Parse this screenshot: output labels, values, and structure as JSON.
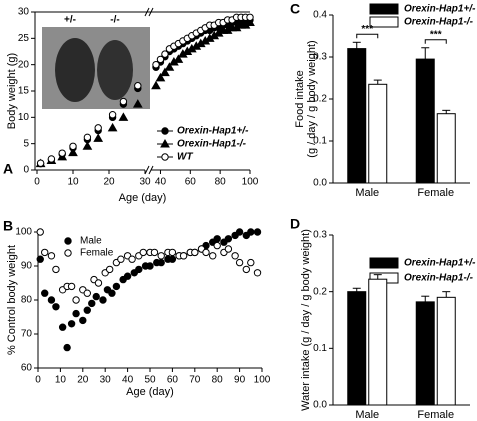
{
  "chart_data": [
    {
      "type": "line",
      "label": "A",
      "xlabel": "Age (day)",
      "ylabel": "Body weight (g)",
      "annotations": [
        "+/-",
        "-/-"
      ],
      "xlim": [
        0,
        100
      ],
      "x_segments": [
        [
          0,
          30
        ],
        [
          35,
          100
        ]
      ],
      "xticks": [
        0,
        10,
        20,
        30,
        40,
        60,
        80,
        100
      ],
      "ylim": [
        0,
        30
      ],
      "yticks": [
        0,
        5,
        10,
        15,
        20,
        25,
        30
      ],
      "x": [
        1,
        4,
        7,
        10,
        14,
        17,
        21,
        24,
        28,
        37,
        40,
        43,
        46,
        49,
        52,
        55,
        58,
        61,
        64,
        67,
        70,
        73,
        76,
        79,
        82,
        85,
        88,
        91,
        94,
        97,
        100
      ],
      "series": [
        {
          "name": "Orexin-Hap1+/-",
          "color": "#000000",
          "marker": "circle",
          "filled": true,
          "values": [
            1.2,
            2,
            3,
            4.2,
            5.8,
            7.5,
            10,
            12.5,
            15.5,
            19.5,
            20.5,
            21.5,
            22.5,
            23,
            23.5,
            24,
            24.5,
            25,
            25.5,
            26,
            26.5,
            26.5,
            27,
            27,
            27.5,
            27.5,
            28,
            28,
            28,
            28.5,
            28.5
          ]
        },
        {
          "name": "Orexin-Hap1-/-",
          "color": "#000000",
          "marker": "triangle",
          "filled": true,
          "values": [
            1.2,
            1.8,
            2.5,
            3.3,
            4.5,
            6,
            8,
            10,
            12.5,
            16,
            17.5,
            18.5,
            19.5,
            20.5,
            21,
            22,
            22.5,
            23,
            23.5,
            24,
            24.5,
            25,
            25.5,
            26,
            26.5,
            26.5,
            27,
            27,
            27.5,
            27.5,
            28
          ]
        },
        {
          "name": "WT",
          "color": "#000000",
          "marker": "circle",
          "filled": false,
          "values": [
            1.3,
            2.1,
            3.2,
            4.5,
            6.2,
            8,
            10.5,
            13,
            16,
            20,
            21,
            22,
            23,
            23.5,
            24,
            24.5,
            25,
            25.5,
            26,
            26.5,
            27,
            27.5,
            27.5,
            28,
            28,
            28.5,
            28.5,
            29,
            29,
            29,
            29
          ]
        }
      ]
    },
    {
      "type": "scatter",
      "label": "B",
      "xlabel": "Age (day)",
      "ylabel": "% Control body weight",
      "xlim": [
        0,
        100
      ],
      "xticks": [
        0,
        10,
        20,
        30,
        40,
        50,
        60,
        70,
        80,
        90,
        100
      ],
      "ylim": [
        60,
        100
      ],
      "yticks": [
        60,
        70,
        80,
        90,
        100
      ],
      "series": [
        {
          "name": "Male",
          "color": "#000000",
          "marker": "circle",
          "filled": true,
          "x": [
            1,
            3,
            6,
            8,
            11,
            13,
            15,
            17,
            20,
            22,
            24,
            26,
            29,
            31,
            33,
            35,
            38,
            40,
            43,
            45,
            48,
            50,
            53,
            55,
            58,
            60,
            63,
            65,
            68,
            70,
            73,
            75,
            78,
            80,
            83,
            85,
            88,
            90,
            93,
            95,
            98
          ],
          "values": [
            92,
            82,
            80,
            78,
            72,
            66,
            73,
            76,
            74,
            77,
            79,
            81,
            80,
            83,
            82,
            84,
            86,
            87,
            88,
            89,
            90,
            90,
            91,
            91,
            92,
            92,
            93,
            93,
            94,
            94,
            95,
            96,
            97,
            98,
            97,
            98,
            99,
            100,
            99,
            100,
            100
          ]
        },
        {
          "name": "Female",
          "color": "#000000",
          "marker": "circle",
          "filled": false,
          "x": [
            1,
            3,
            6,
            8,
            11,
            13,
            15,
            17,
            20,
            22,
            25,
            27,
            30,
            32,
            35,
            37,
            40,
            42,
            45,
            47,
            50,
            52,
            55,
            58,
            60,
            63,
            65,
            68,
            70,
            73,
            75,
            78,
            80,
            83,
            85,
            88,
            90,
            93,
            95,
            98
          ],
          "values": [
            100,
            94,
            93,
            89,
            83,
            84,
            84,
            80,
            83,
            82,
            86,
            85,
            88,
            89,
            91,
            92,
            93,
            92,
            93,
            94,
            94,
            94,
            93,
            94,
            94,
            93,
            93,
            94,
            94,
            95,
            94,
            93,
            96,
            94,
            95,
            93,
            91,
            89,
            91,
            88
          ]
        }
      ]
    },
    {
      "type": "bar",
      "label": "C",
      "ylabel": [
        "Food intake",
        "(g / day / g body weight)"
      ],
      "categories": [
        "Male",
        "Female"
      ],
      "significance": [
        "***",
        "***"
      ],
      "ylim": [
        0,
        0.4
      ],
      "yticks": [
        {
          "value": 0,
          "label": "0.0"
        },
        0.1,
        0.2,
        0.3,
        0.4
      ],
      "series": [
        {
          "name": "Orexin-Hap1+/-",
          "color": "#000000",
          "values": [
            0.32,
            0.295
          ],
          "errors": [
            0.015,
            0.027
          ]
        },
        {
          "name": "Orexin-Hap1-/-",
          "color": "#ffffff",
          "values": [
            0.235,
            0.165
          ],
          "errors": [
            0.01,
            0.008
          ]
        }
      ]
    },
    {
      "type": "bar",
      "label": "D",
      "ylabel": "Water intake (g / day / g body weight)",
      "categories": [
        "Male",
        "Female"
      ],
      "ylim": [
        0,
        0.3
      ],
      "yticks": [
        {
          "value": 0,
          "label": "0.0"
        },
        0.1,
        0.2,
        0.3
      ],
      "series": [
        {
          "name": "Orexin-Hap1+/-",
          "color": "#000000",
          "values": [
            0.2,
            0.182
          ],
          "errors": [
            0.006,
            0.01
          ]
        },
        {
          "name": "Orexin-Hap1-/-",
          "color": "#ffffff",
          "values": [
            0.222,
            0.19
          ],
          "errors": [
            0.008,
            0.01
          ]
        }
      ]
    }
  ]
}
